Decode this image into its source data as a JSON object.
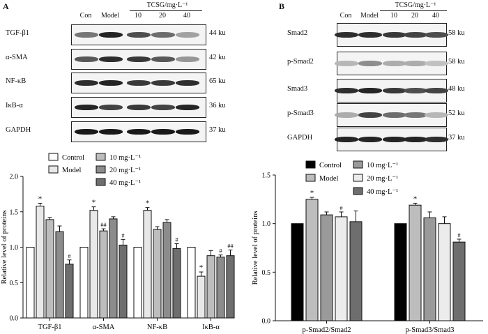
{
  "panels": {
    "a": {
      "letter": "A",
      "treatment_label": "TCSG/mg·L⁻¹",
      "lanes": [
        "Con",
        "Model",
        "10",
        "20",
        "40"
      ],
      "blots": [
        {
          "protein": "TGF-β1",
          "mw": "44 ku"
        },
        {
          "protein": "α-SMA",
          "mw": "42 ku"
        },
        {
          "protein": "NF-κB",
          "mw": "65 ku"
        },
        {
          "protein": "IκB-α",
          "mw": "36 ku"
        },
        {
          "protein": "GAPDH",
          "mw": "37 ku"
        }
      ]
    },
    "b": {
      "letter": "B",
      "treatment_label": "TCSG/mg·L⁻¹",
      "lanes": [
        "Con",
        "Model",
        "10",
        "20",
        "40"
      ],
      "blots": [
        {
          "protein": "Smad2",
          "mw": "58 ku"
        },
        {
          "protein": "p-Smad2",
          "mw": "58 ku"
        },
        {
          "protein": "Smad3",
          "mw": "48 ku"
        },
        {
          "protein": "p-Smad3",
          "mw": "52 ku"
        },
        {
          "protein": "GAPDH",
          "mw": "37 ku"
        }
      ]
    }
  },
  "chart_data": [
    {
      "type": "bar",
      "ylabel": "Relative level of proteins",
      "ylim": [
        0,
        2.0
      ],
      "yticks": [
        "0.0",
        "0.5",
        "1.0",
        "1.5",
        "2.0"
      ],
      "categories": [
        "TGF-β1",
        "α-SMA",
        "NF-κB",
        "IκB-α"
      ],
      "legend_columns": [
        [
          "Control",
          "Model"
        ],
        [
          "10 mg·L⁻¹",
          "20 mg·L⁻¹",
          "40 mg·L⁻¹"
        ]
      ],
      "series": [
        {
          "name": "Control",
          "color": "#ffffff",
          "values": [
            1.0,
            1.0,
            1.0,
            1.0
          ],
          "errors": [
            0,
            0,
            0,
            0
          ],
          "marks": [
            "",
            "",
            "",
            ""
          ]
        },
        {
          "name": "Model",
          "color": "#e8e8e8",
          "values": [
            1.58,
            1.52,
            1.52,
            0.59
          ],
          "errors": [
            0.04,
            0.05,
            0.04,
            0.06
          ],
          "marks": [
            "*",
            "*",
            "*",
            "*"
          ]
        },
        {
          "name": "10 mg·L⁻¹",
          "color": "#bdbdbd",
          "values": [
            1.39,
            1.23,
            1.25,
            0.88
          ],
          "errors": [
            0.03,
            0.03,
            0.04,
            0.07
          ],
          "marks": [
            "",
            "##",
            "",
            ""
          ]
        },
        {
          "name": "20 mg·L⁻¹",
          "color": "#8c8c8c",
          "values": [
            1.22,
            1.4,
            1.35,
            0.86
          ],
          "errors": [
            0.08,
            0.03,
            0.04,
            0.03
          ],
          "marks": [
            "",
            "",
            "",
            "#"
          ]
        },
        {
          "name": "40 mg·L⁻¹",
          "color": "#6e6e6e",
          "values": [
            0.76,
            1.03,
            0.98,
            0.88
          ],
          "errors": [
            0.06,
            0.08,
            0.07,
            0.08
          ],
          "marks": [
            "#",
            "#",
            "#",
            "##"
          ]
        }
      ]
    },
    {
      "type": "bar",
      "ylabel": "Relative level of proteins",
      "ylim": [
        0,
        1.5
      ],
      "yticks": [
        "0.0",
        "0.5",
        "1.0",
        "1.5"
      ],
      "categories": [
        "p-Smad2/Smad2",
        "p-Smad3/Smad3"
      ],
      "legend_columns": [
        [
          "Control",
          "Model"
        ],
        [
          "10 mg·L⁻¹",
          "20 mg·L⁻¹",
          "40 mg·L⁻¹"
        ]
      ],
      "series": [
        {
          "name": "Control",
          "color": "#000000",
          "values": [
            1.0,
            1.0
          ],
          "errors": [
            0,
            0
          ],
          "marks": [
            "",
            ""
          ]
        },
        {
          "name": "Model",
          "color": "#bdbdbd",
          "values": [
            1.25,
            1.19
          ],
          "errors": [
            0.02,
            0.02
          ],
          "marks": [
            "*",
            "*"
          ]
        },
        {
          "name": "10 mg·L⁻¹",
          "color": "#9a9a9a",
          "values": [
            1.09,
            1.06
          ],
          "errors": [
            0.03,
            0.06
          ],
          "marks": [
            "",
            ""
          ]
        },
        {
          "name": "20 mg·L⁻¹",
          "color": "#ececec",
          "values": [
            1.07,
            1.0
          ],
          "errors": [
            0.05,
            0.07
          ],
          "marks": [
            "#",
            ""
          ]
        },
        {
          "name": "40 mg·L⁻¹",
          "color": "#6e6e6e",
          "values": [
            1.02,
            0.81
          ],
          "errors": [
            0.11,
            0.03
          ],
          "marks": [
            "",
            "#"
          ]
        }
      ]
    }
  ]
}
